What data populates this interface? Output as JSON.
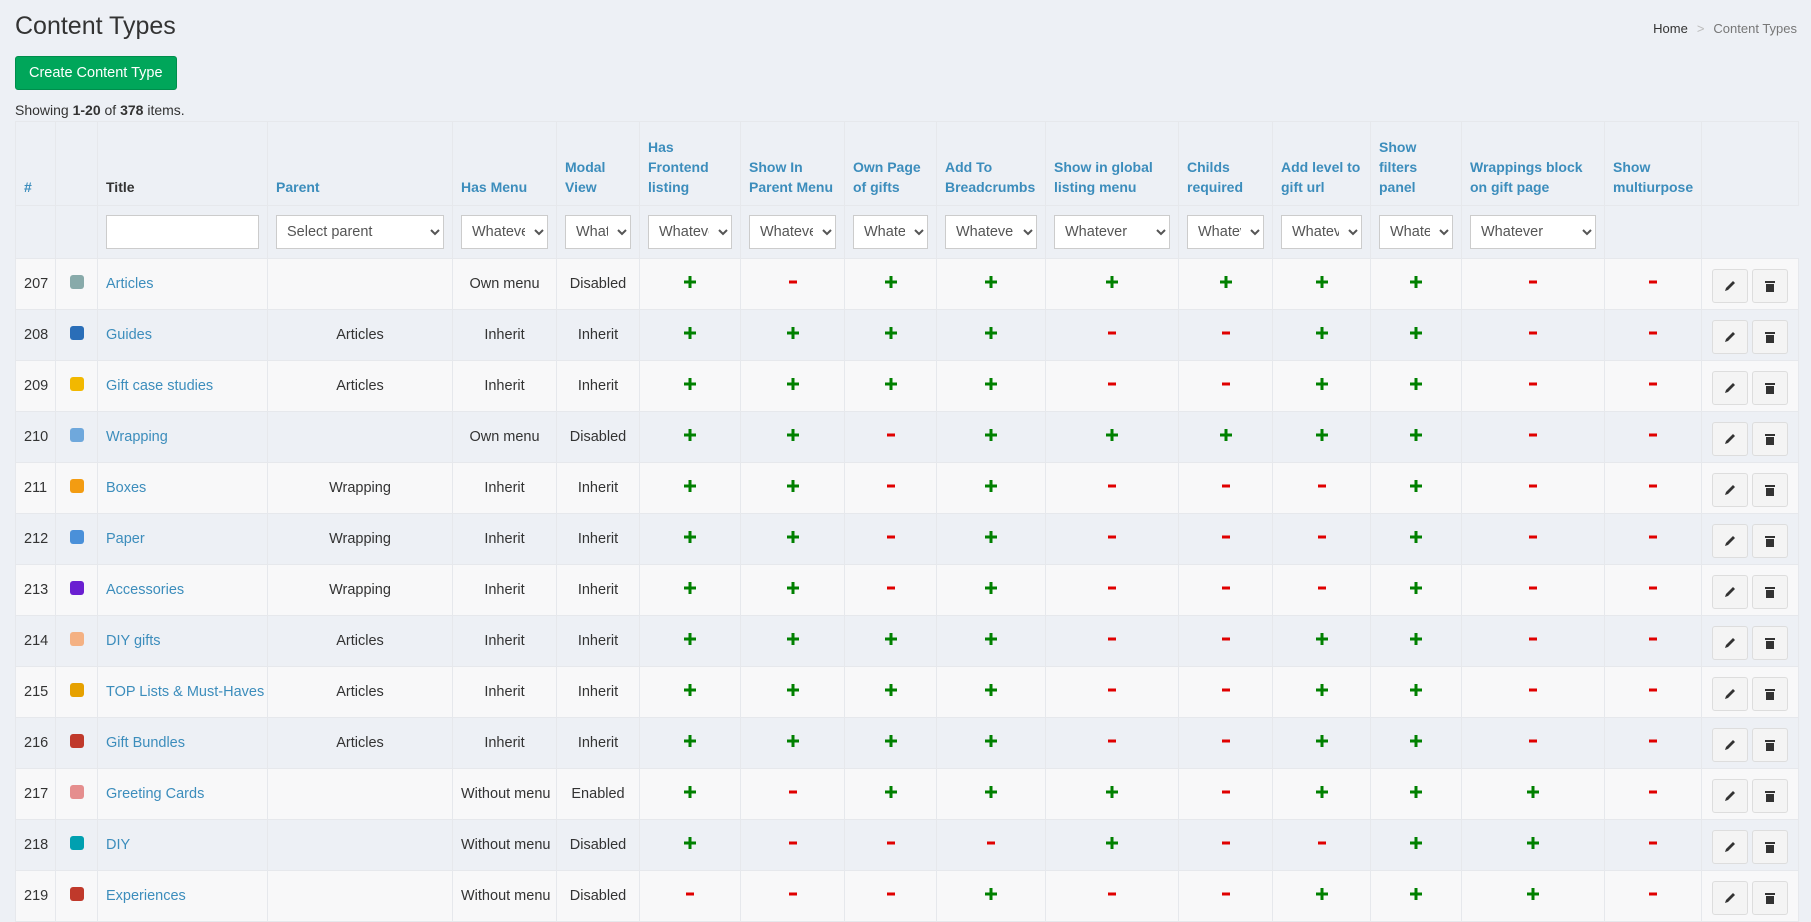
{
  "header": {
    "title": "Content Types",
    "breadcrumb": [
      "Home",
      "Content Types"
    ]
  },
  "create_button": "Create Content Type",
  "summary": {
    "prefix": "Showing",
    "range": "1-20",
    "of": "of",
    "total": "378",
    "suffix": "items."
  },
  "table": {
    "columns": [
      "#",
      "Title",
      "Parent",
      "Has Menu",
      "Modal View",
      "Has Frontend listing",
      "Show In Parent Menu",
      "Own Page of gifts",
      "Add To Breadcrumbs",
      "Show in global listing menu",
      "Childs required",
      "Add level to gift url",
      "Show filters panel",
      "Wrappings block on gift page",
      "Show multiurpose"
    ],
    "filters": {
      "parent": "Select parent",
      "other": "Whatever"
    },
    "rows": [
      {
        "id": "207",
        "title": "Articles",
        "parent": null,
        "menu": "Own menu",
        "modal": "Disabled",
        "flags": [
          true,
          false,
          true,
          true,
          true,
          true,
          true,
          true,
          false,
          false
        ]
      },
      {
        "id": "208",
        "title": "Guides",
        "parent": "Articles",
        "menu": "Inherit",
        "modal": "Inherit",
        "flags": [
          true,
          true,
          true,
          true,
          false,
          false,
          true,
          true,
          false,
          false
        ]
      },
      {
        "id": "209",
        "title": "Gift case studies",
        "parent": "Articles",
        "menu": "Inherit",
        "modal": "Inherit",
        "flags": [
          true,
          true,
          true,
          true,
          false,
          false,
          true,
          true,
          false,
          false
        ]
      },
      {
        "id": "210",
        "title": "Wrapping",
        "parent": null,
        "menu": "Own menu",
        "modal": "Disabled",
        "flags": [
          true,
          true,
          false,
          true,
          true,
          true,
          true,
          true,
          false,
          false
        ]
      },
      {
        "id": "211",
        "title": "Boxes",
        "parent": "Wrapping",
        "menu": "Inherit",
        "modal": "Inherit",
        "flags": [
          true,
          true,
          false,
          true,
          false,
          false,
          false,
          true,
          false,
          false
        ]
      },
      {
        "id": "212",
        "title": "Paper",
        "parent": "Wrapping",
        "menu": "Inherit",
        "modal": "Inherit",
        "flags": [
          true,
          true,
          false,
          true,
          false,
          false,
          false,
          true,
          false,
          false
        ]
      },
      {
        "id": "213",
        "title": "Accessories",
        "parent": "Wrapping",
        "menu": "Inherit",
        "modal": "Inherit",
        "flags": [
          true,
          true,
          false,
          true,
          false,
          false,
          false,
          true,
          false,
          false
        ]
      },
      {
        "id": "214",
        "title": "DIY gifts",
        "parent": "Articles",
        "menu": "Inherit",
        "modal": "Inherit",
        "flags": [
          true,
          true,
          true,
          true,
          false,
          false,
          true,
          true,
          false,
          false
        ]
      },
      {
        "id": "215",
        "title": "TOP Lists & Must-Haves",
        "parent": "Articles",
        "menu": "Inherit",
        "modal": "Inherit",
        "flags": [
          true,
          true,
          true,
          true,
          false,
          false,
          true,
          true,
          false,
          false
        ]
      },
      {
        "id": "216",
        "title": "Gift Bundles",
        "parent": "Articles",
        "menu": "Inherit",
        "modal": "Inherit",
        "flags": [
          true,
          true,
          true,
          true,
          false,
          false,
          true,
          true,
          false,
          false
        ]
      },
      {
        "id": "217",
        "title": "Greeting Cards",
        "parent": null,
        "menu": "Without menu",
        "modal": "Enabled",
        "flags": [
          true,
          false,
          true,
          true,
          true,
          false,
          true,
          true,
          true,
          false
        ]
      },
      {
        "id": "218",
        "title": "DIY",
        "parent": null,
        "menu": "Without menu",
        "modal": "Disabled",
        "flags": [
          true,
          false,
          false,
          false,
          true,
          false,
          false,
          true,
          true,
          false
        ]
      },
      {
        "id": "219",
        "title": "Experiences",
        "parent": null,
        "menu": "Without menu",
        "modal": "Disabled",
        "flags": [
          false,
          false,
          false,
          true,
          false,
          false,
          true,
          true,
          true,
          false
        ]
      }
    ]
  }
}
